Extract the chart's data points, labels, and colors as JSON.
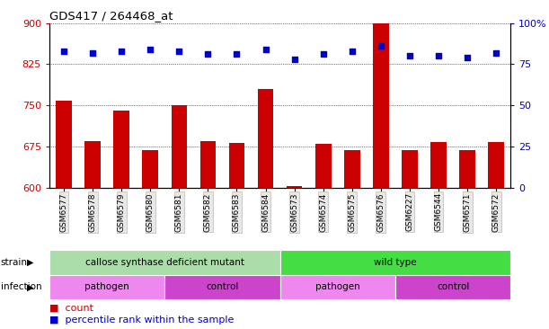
{
  "title": "GDS417 / 264468_at",
  "samples": [
    "GSM6577",
    "GSM6578",
    "GSM6579",
    "GSM6580",
    "GSM6581",
    "GSM6582",
    "GSM6583",
    "GSM6584",
    "GSM6573",
    "GSM6574",
    "GSM6575",
    "GSM6576",
    "GSM6227",
    "GSM6544",
    "GSM6571",
    "GSM6572"
  ],
  "counts": [
    758,
    685,
    740,
    668,
    750,
    685,
    682,
    780,
    603,
    680,
    668,
    900,
    668,
    683,
    668,
    683
  ],
  "percentiles": [
    83,
    82,
    83,
    84,
    83,
    81,
    81,
    84,
    78,
    81,
    83,
    86,
    80,
    80,
    79,
    82
  ],
  "ylim_left": [
    600,
    900
  ],
  "ylim_right": [
    0,
    100
  ],
  "yticks_left": [
    600,
    675,
    750,
    825,
    900
  ],
  "yticks_right": [
    0,
    25,
    50,
    75,
    100
  ],
  "bar_color": "#cc0000",
  "dot_color": "#0000cc",
  "strain_groups": [
    {
      "label": "callose synthase deficient mutant",
      "start": 0,
      "end": 8,
      "color": "#aaddaa"
    },
    {
      "label": "wild type",
      "start": 8,
      "end": 16,
      "color": "#44dd44"
    }
  ],
  "infection_groups": [
    {
      "label": "pathogen",
      "start": 0,
      "end": 4,
      "color": "#ee88ee"
    },
    {
      "label": "control",
      "start": 4,
      "end": 8,
      "color": "#cc44cc"
    },
    {
      "label": "pathogen",
      "start": 8,
      "end": 12,
      "color": "#ee88ee"
    },
    {
      "label": "control",
      "start": 12,
      "end": 16,
      "color": "#cc44cc"
    }
  ],
  "legend_items": [
    {
      "label": "count",
      "color": "#cc0000"
    },
    {
      "label": "percentile rank within the sample",
      "color": "#0000cc"
    }
  ],
  "tick_color_left": "#cc0000",
  "tick_color_right": "#0000cc",
  "bar_width": 0.55
}
